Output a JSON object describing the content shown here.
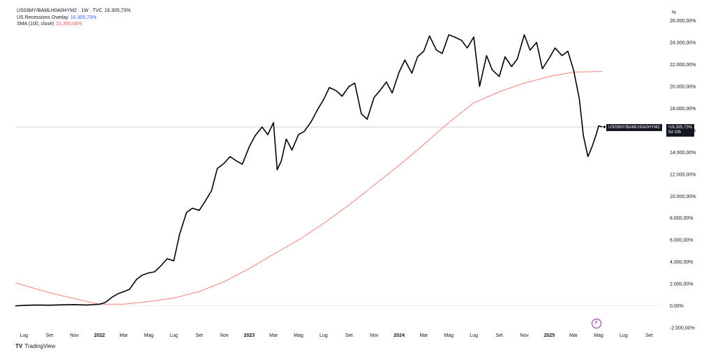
{
  "legend": {
    "symbol_line": "US03MY/BAMLH0A0HYM2 · 1W · TVC",
    "symbol_value": "16.305,73%",
    "recession_label": "US Recessions Overlay",
    "recession_value": "16.305,73%",
    "sma_label": "SMA (100, close)",
    "sma_value": "21.360,06%"
  },
  "scale_button": "%",
  "last_price_label": {
    "name": "US03MY/BAMLH0A0HYM2",
    "value": "•16.305,73%",
    "countdown": "5d 10h"
  },
  "footer": {
    "brand": "TradingView",
    "brand_mark": "TV"
  },
  "event_icon": "F",
  "colors": {
    "price_line": "#000000",
    "sma_line": "#f28b82",
    "grid": "#e8e8e8",
    "label_bg": "#131722",
    "event": "#9c27b0"
  },
  "chart_data": {
    "type": "line",
    "y_unit": "%",
    "ylim": [
      -2500,
      26600
    ],
    "grid": false,
    "y_ticks": [
      26000,
      24000,
      22000,
      20000,
      18000,
      16000,
      14000,
      12000,
      10000,
      8000,
      6000,
      4000,
      2000,
      0,
      -2000
    ],
    "y_tick_labels": [
      "26.000,00%",
      "24.000,00%",
      "22.000,00%",
      "20.000,00%",
      "18.000,00%",
      "16.000,00%",
      "14.000,00%",
      "12.000,00%",
      "10.000,00%",
      "8.000,00%",
      "6.000,00%",
      "4.000,00%",
      "2.000,00%",
      "0,00%",
      "-2.000,00%"
    ],
    "x_range": [
      "2021-06-10",
      "2025-10-01"
    ],
    "x_ticks": [
      {
        "date": "2021-07-01",
        "label": "Lug"
      },
      {
        "date": "2021-09-01",
        "label": "Set"
      },
      {
        "date": "2021-11-01",
        "label": "Nov"
      },
      {
        "date": "2022-01-01",
        "label": "2022"
      },
      {
        "date": "2022-03-01",
        "label": "Mar"
      },
      {
        "date": "2022-05-01",
        "label": "Mag"
      },
      {
        "date": "2022-07-01",
        "label": "Lug"
      },
      {
        "date": "2022-09-01",
        "label": "Set"
      },
      {
        "date": "2022-11-01",
        "label": "Nov"
      },
      {
        "date": "2023-01-01",
        "label": "2023"
      },
      {
        "date": "2023-03-01",
        "label": "Mar"
      },
      {
        "date": "2023-05-01",
        "label": "Mag"
      },
      {
        "date": "2023-07-01",
        "label": "Lug"
      },
      {
        "date": "2023-09-01",
        "label": "Set"
      },
      {
        "date": "2023-11-01",
        "label": "Nov"
      },
      {
        "date": "2024-01-01",
        "label": "2024"
      },
      {
        "date": "2024-03-01",
        "label": "Mar"
      },
      {
        "date": "2024-05-01",
        "label": "Mag"
      },
      {
        "date": "2024-07-01",
        "label": "Lug"
      },
      {
        "date": "2024-09-01",
        "label": "Set"
      },
      {
        "date": "2024-11-01",
        "label": "Nov"
      },
      {
        "date": "2025-01-01",
        "label": "2025"
      },
      {
        "date": "2025-03-01",
        "label": "Mar"
      },
      {
        "date": "2025-05-01",
        "label": "Mag"
      },
      {
        "date": "2025-07-01",
        "label": "Lug"
      },
      {
        "date": "2025-09-01",
        "label": "Set"
      }
    ],
    "current_value": 16305.73,
    "series": [
      {
        "name": "US03MY/BAMLH0A0HYM2",
        "points": [
          [
            "2021-06-10",
            0
          ],
          [
            "2021-07-01",
            50
          ],
          [
            "2021-08-01",
            80
          ],
          [
            "2021-09-01",
            60
          ],
          [
            "2021-10-01",
            90
          ],
          [
            "2021-11-01",
            120
          ],
          [
            "2021-12-01",
            80
          ],
          [
            "2022-01-01",
            150
          ],
          [
            "2022-01-15",
            300
          ],
          [
            "2022-02-01",
            800
          ],
          [
            "2022-02-15",
            1100
          ],
          [
            "2022-03-01",
            1300
          ],
          [
            "2022-03-15",
            1500
          ],
          [
            "2022-04-01",
            2400
          ],
          [
            "2022-04-15",
            2800
          ],
          [
            "2022-05-01",
            3000
          ],
          [
            "2022-05-15",
            3100
          ],
          [
            "2022-06-01",
            3700
          ],
          [
            "2022-06-15",
            4300
          ],
          [
            "2022-07-01",
            4100
          ],
          [
            "2022-07-15",
            6500
          ],
          [
            "2022-08-01",
            8500
          ],
          [
            "2022-08-15",
            8900
          ],
          [
            "2022-09-01",
            8700
          ],
          [
            "2022-09-15",
            9500
          ],
          [
            "2022-10-01",
            10500
          ],
          [
            "2022-10-15",
            12500
          ],
          [
            "2022-11-01",
            13000
          ],
          [
            "2022-11-15",
            13600
          ],
          [
            "2022-12-01",
            13200
          ],
          [
            "2022-12-15",
            12900
          ],
          [
            "2023-01-01",
            14500
          ],
          [
            "2023-01-15",
            15500
          ],
          [
            "2023-02-01",
            16300
          ],
          [
            "2023-02-15",
            15600
          ],
          [
            "2023-03-01",
            16700
          ],
          [
            "2023-03-10",
            12400
          ],
          [
            "2023-03-20",
            13200
          ],
          [
            "2023-04-01",
            15200
          ],
          [
            "2023-04-15",
            14200
          ],
          [
            "2023-05-01",
            15600
          ],
          [
            "2023-05-15",
            15900
          ],
          [
            "2023-06-01",
            16800
          ],
          [
            "2023-06-15",
            17800
          ],
          [
            "2023-07-01",
            18800
          ],
          [
            "2023-07-15",
            19900
          ],
          [
            "2023-08-01",
            19600
          ],
          [
            "2023-08-15",
            19100
          ],
          [
            "2023-09-01",
            20000
          ],
          [
            "2023-09-15",
            20300
          ],
          [
            "2023-10-01",
            17500
          ],
          [
            "2023-10-15",
            17000
          ],
          [
            "2023-11-01",
            19000
          ],
          [
            "2023-11-15",
            19600
          ],
          [
            "2023-12-01",
            20400
          ],
          [
            "2023-12-15",
            19400
          ],
          [
            "2024-01-01",
            21300
          ],
          [
            "2024-01-15",
            22400
          ],
          [
            "2024-02-01",
            21200
          ],
          [
            "2024-02-15",
            22700
          ],
          [
            "2024-03-01",
            23200
          ],
          [
            "2024-03-15",
            24600
          ],
          [
            "2024-04-01",
            23300
          ],
          [
            "2024-04-15",
            23000
          ],
          [
            "2024-05-01",
            24700
          ],
          [
            "2024-05-15",
            24500
          ],
          [
            "2024-06-01",
            24200
          ],
          [
            "2024-06-15",
            23500
          ],
          [
            "2024-07-01",
            24500
          ],
          [
            "2024-07-15",
            20000
          ],
          [
            "2024-08-01",
            22800
          ],
          [
            "2024-08-15",
            21500
          ],
          [
            "2024-09-01",
            20900
          ],
          [
            "2024-09-15",
            22700
          ],
          [
            "2024-10-01",
            21800
          ],
          [
            "2024-10-15",
            22500
          ],
          [
            "2024-11-01",
            24700
          ],
          [
            "2024-11-15",
            23300
          ],
          [
            "2024-12-01",
            24000
          ],
          [
            "2024-12-15",
            21600
          ],
          [
            "2025-01-01",
            22600
          ],
          [
            "2025-01-15",
            23500
          ],
          [
            "2025-02-01",
            22800
          ],
          [
            "2025-02-15",
            23200
          ],
          [
            "2025-03-01",
            21500
          ],
          [
            "2025-03-15",
            18900
          ],
          [
            "2025-03-25",
            15500
          ],
          [
            "2025-04-05",
            13600
          ],
          [
            "2025-04-15",
            14500
          ],
          [
            "2025-04-25",
            15600
          ],
          [
            "2025-05-01",
            16400
          ],
          [
            "2025-05-10",
            16305.73
          ]
        ]
      },
      {
        "name": "SMA (100, close)",
        "points": [
          [
            "2021-06-10",
            2100
          ],
          [
            "2021-09-01",
            1200
          ],
          [
            "2021-12-01",
            400
          ],
          [
            "2022-01-01",
            150
          ],
          [
            "2022-03-01",
            150
          ],
          [
            "2022-05-01",
            400
          ],
          [
            "2022-07-01",
            700
          ],
          [
            "2022-09-01",
            1300
          ],
          [
            "2022-11-01",
            2200
          ],
          [
            "2023-01-01",
            3400
          ],
          [
            "2023-03-01",
            4700
          ],
          [
            "2023-05-01",
            6000
          ],
          [
            "2023-07-01",
            7500
          ],
          [
            "2023-09-01",
            9200
          ],
          [
            "2023-11-01",
            11000
          ],
          [
            "2024-01-01",
            12800
          ],
          [
            "2024-03-01",
            14700
          ],
          [
            "2024-05-01",
            16700
          ],
          [
            "2024-07-01",
            18500
          ],
          [
            "2024-09-01",
            19500
          ],
          [
            "2024-11-01",
            20300
          ],
          [
            "2025-01-01",
            20900
          ],
          [
            "2025-03-01",
            21300
          ],
          [
            "2025-05-10",
            21360.06
          ]
        ]
      }
    ]
  }
}
